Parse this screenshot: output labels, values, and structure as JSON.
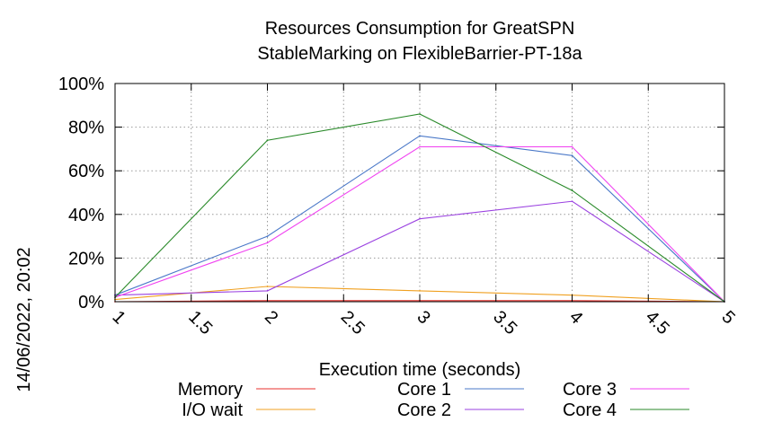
{
  "chart_data": {
    "type": "line",
    "title_lines": [
      "Resources Consumption for GreatSPN",
      "StableMarking on FlexibleBarrier-PT-18a"
    ],
    "xlabel": "Execution time (seconds)",
    "ylabel": "",
    "xlim": [
      1,
      5
    ],
    "ylim": [
      0,
      100
    ],
    "x_ticks": [
      1,
      1.5,
      2,
      2.5,
      3,
      3.5,
      4,
      4.5,
      5
    ],
    "x_tick_labels": [
      "1",
      "1.5",
      "2",
      "2.5",
      "3",
      "3.5",
      "4",
      "4.5",
      "5"
    ],
    "y_ticks": [
      0,
      20,
      40,
      60,
      80,
      100
    ],
    "y_tick_labels": [
      "0%",
      "20%",
      "40%",
      "60%",
      "80%",
      "100%"
    ],
    "grid": true,
    "legend_position": "bottom",
    "timestamp": "14/06/2022, 20:02",
    "x": [
      1,
      2,
      3,
      4,
      5
    ],
    "series": [
      {
        "name": "Memory",
        "color": "#e8322e",
        "values": [
          0,
          0.5,
          0.5,
          0.5,
          0
        ]
      },
      {
        "name": "I/O wait",
        "color": "#f0a020",
        "values": [
          1,
          7,
          5,
          3,
          0
        ]
      },
      {
        "name": "Core 1",
        "color": "#4a78c8",
        "values": [
          3,
          30,
          76,
          67,
          0
        ]
      },
      {
        "name": "Core 2",
        "color": "#9a40e0",
        "values": [
          3,
          5,
          38,
          46,
          0
        ]
      },
      {
        "name": "Core 3",
        "color": "#f040f0",
        "values": [
          2,
          27,
          71,
          71,
          0
        ]
      },
      {
        "name": "Core 4",
        "color": "#2a8a2a",
        "values": [
          2,
          74,
          86,
          51,
          0
        ]
      }
    ]
  }
}
